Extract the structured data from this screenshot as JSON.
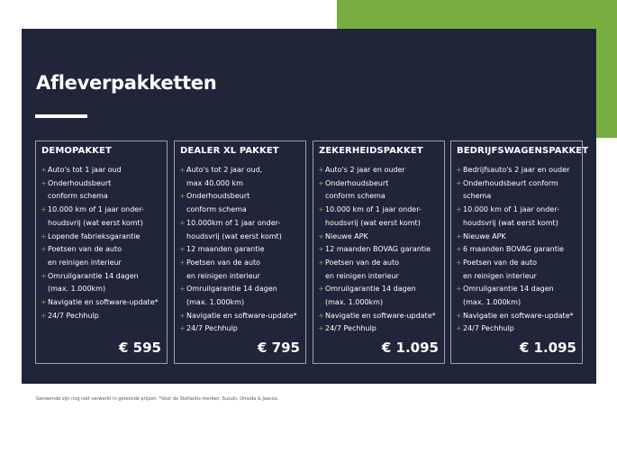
{
  "page_title": "Afleverpakketten",
  "colors": {
    "accent": "#77ae3f",
    "panel": "#20253a"
  },
  "packages": [
    {
      "name": "DEMOPAKKET",
      "price": "€ 595",
      "items": [
        [
          "Auto's tot 1 jaar oud"
        ],
        [
          "Onderhoudsbeurt",
          "conform schema"
        ],
        [
          "10.000 km of 1 jaar onder-",
          "houdsvrij (wat eerst komt)"
        ],
        [
          "Lopende fabrieksgarantie"
        ],
        [
          "Poetsen van de auto",
          "en reinigen interieur"
        ],
        [
          "Omruilgarantie 14 dagen",
          "(max. 1.000km)"
        ],
        [
          "Navigatie en software-update*"
        ],
        [
          "24/7 Pechhulp"
        ]
      ]
    },
    {
      "name": "DEALER XL PAKKET",
      "price": "€ 795",
      "items": [
        [
          "Auto's tot 2 jaar oud,",
          "max 40.000 km"
        ],
        [
          "Onderhoudsbeurt",
          "conform schema"
        ],
        [
          "10.000km of 1 jaar onder-",
          "houdsvrij (wat eerst komt)"
        ],
        [
          "12 maanden garantie"
        ],
        [
          "Poetsen van de auto",
          "en reinigen interieur"
        ],
        [
          "Omruilgarantie 14 dagen",
          "(max. 1.000km)"
        ],
        [
          "Navigatie en software-update*"
        ],
        [
          "24/7 Pechhulp"
        ]
      ]
    },
    {
      "name": "ZEKERHEIDSPAKKET",
      "price": "€ 1.095",
      "items": [
        [
          "Auto's 2 jaar en ouder"
        ],
        [
          "Onderhoudsbeurt",
          "conform schema"
        ],
        [
          "10.000 km of 1 jaar onder-",
          "houdsvrij (wat eerst komt)"
        ],
        [
          "Nieuwe APK"
        ],
        [
          "12 maanden BOVAG garantie"
        ],
        [
          "Poetsen van de auto",
          "en reinigen interieur"
        ],
        [
          "Omruilgarantie 14 dagen",
          "(max. 1.000km)"
        ],
        [
          "Navigatie en software-update*"
        ],
        [
          "24/7 Pechhulp"
        ]
      ]
    },
    {
      "name": "BEDRIJFSWAGENSPAKKET",
      "price": "€ 1.095",
      "items": [
        [
          "Bedrijfsauto's 2 jaar en ouder"
        ],
        [
          "Onderhoudsbeurt conform",
          "schema"
        ],
        [
          "10.000 km of 1 jaar onder-",
          "houdsvrij (wat eerst komt)"
        ],
        [
          "Nieuwe APK"
        ],
        [
          "6 maanden BOVAG garantie"
        ],
        [
          "Poetsen van de auto",
          "en reinigen interieur"
        ],
        [
          "Omruilgarantie 14 dagen",
          "(max. 1.000km)"
        ],
        [
          "Navigatie en software-update*"
        ],
        [
          "24/7 Pechhulp"
        ]
      ]
    }
  ],
  "footnote": "Genoemde zijn nog niet verwerkt in getoonde prijzen. *Voor de Stellantis merken, Suzuki, Omoda & Jaecoo."
}
